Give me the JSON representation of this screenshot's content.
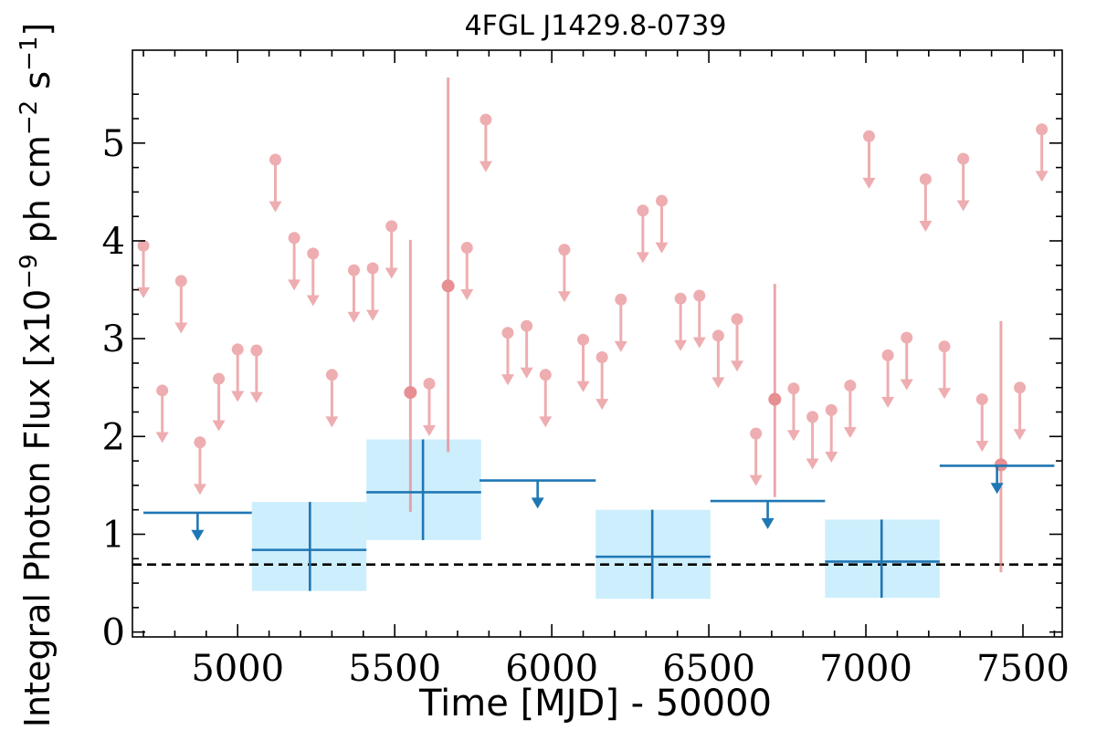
{
  "chart_data": {
    "type": "scatter",
    "title": "4FGL J1429.8-0739",
    "xlabel": "Time [MJD] - 50000",
    "ylabel_parts": [
      "Integral Photon Flux [x10",
      "−9",
      " ph cm",
      "−2",
      " s",
      "−1",
      "]"
    ],
    "xlim": [
      4665,
      7625
    ],
    "ylim": [
      -0.05,
      5.95
    ],
    "xticks": [
      5000,
      5500,
      6000,
      6500,
      7000,
      7500
    ],
    "yticks": [
      0,
      1,
      2,
      3,
      4,
      5
    ],
    "grid": false,
    "colors": {
      "fine": "#e88b8f",
      "coarse": "#1f77b4",
      "band": "#cdeefc",
      "ref_line": "#000000"
    },
    "reference_line": {
      "y": 0.69,
      "style": "dashed"
    },
    "series": [
      {
        "binning": "fine",
        "upper_limits": [
          {
            "x": 4700,
            "y": 3.95
          },
          {
            "x": 4760,
            "y": 2.47
          },
          {
            "x": 4820,
            "y": 3.59
          },
          {
            "x": 4880,
            "y": 1.94
          },
          {
            "x": 4940,
            "y": 2.59
          },
          {
            "x": 5000,
            "y": 2.89
          },
          {
            "x": 5060,
            "y": 2.88
          },
          {
            "x": 5120,
            "y": 4.83
          },
          {
            "x": 5180,
            "y": 4.03
          },
          {
            "x": 5240,
            "y": 3.87
          },
          {
            "x": 5300,
            "y": 2.63
          },
          {
            "x": 5370,
            "y": 3.7
          },
          {
            "x": 5430,
            "y": 3.72
          },
          {
            "x": 5490,
            "y": 4.15
          },
          {
            "x": 5610,
            "y": 2.54
          },
          {
            "x": 5730,
            "y": 3.93
          },
          {
            "x": 5790,
            "y": 5.24
          },
          {
            "x": 5860,
            "y": 3.06
          },
          {
            "x": 5920,
            "y": 3.13
          },
          {
            "x": 5980,
            "y": 2.63
          },
          {
            "x": 6040,
            "y": 3.91
          },
          {
            "x": 6100,
            "y": 2.99
          },
          {
            "x": 6160,
            "y": 2.81
          },
          {
            "x": 6220,
            "y": 3.4
          },
          {
            "x": 6290,
            "y": 4.31
          },
          {
            "x": 6350,
            "y": 4.41
          },
          {
            "x": 6410,
            "y": 3.41
          },
          {
            "x": 6470,
            "y": 3.44
          },
          {
            "x": 6530,
            "y": 3.03
          },
          {
            "x": 6590,
            "y": 3.2
          },
          {
            "x": 6650,
            "y": 2.03
          },
          {
            "x": 6770,
            "y": 2.49
          },
          {
            "x": 6830,
            "y": 2.2
          },
          {
            "x": 6890,
            "y": 2.27
          },
          {
            "x": 6950,
            "y": 2.52
          },
          {
            "x": 7010,
            "y": 5.07
          },
          {
            "x": 7070,
            "y": 2.83
          },
          {
            "x": 7130,
            "y": 3.01
          },
          {
            "x": 7190,
            "y": 4.63
          },
          {
            "x": 7250,
            "y": 2.92
          },
          {
            "x": 7310,
            "y": 4.84
          },
          {
            "x": 7370,
            "y": 2.38
          },
          {
            "x": 7490,
            "y": 2.5
          },
          {
            "x": 7560,
            "y": 5.14
          }
        ],
        "detections": [
          {
            "x": 5550,
            "y": 2.45,
            "ylow": 1.23,
            "yhigh": 4.01
          },
          {
            "x": 5670,
            "y": 3.54,
            "ylow": 1.84,
            "yhigh": 5.67
          },
          {
            "x": 6710,
            "y": 2.38,
            "ylow": 1.38,
            "yhigh": 3.56
          },
          {
            "x": 7430,
            "y": 1.71,
            "ylow": 0.61,
            "yhigh": 3.18
          }
        ]
      },
      {
        "binning": "coarse",
        "upper_limits": [
          {
            "x0": 4700,
            "x1": 5045,
            "y": 1.22
          },
          {
            "x0": 5770,
            "x1": 6140,
            "y": 1.55
          },
          {
            "x0": 6505,
            "x1": 6870,
            "y": 1.34
          },
          {
            "x0": 7235,
            "x1": 7600,
            "y": 1.7
          }
        ],
        "detections": [
          {
            "x0": 5045,
            "x1": 5410,
            "x": 5230,
            "y": 0.84,
            "ylow": 0.42,
            "yhigh": 1.33
          },
          {
            "x0": 5410,
            "x1": 5775,
            "x": 5590,
            "y": 1.43,
            "ylow": 0.94,
            "yhigh": 1.97
          },
          {
            "x0": 6140,
            "x1": 6505,
            "x": 6320,
            "y": 0.77,
            "ylow": 0.34,
            "yhigh": 1.25
          },
          {
            "x0": 6870,
            "x1": 7235,
            "x": 7050,
            "y": 0.72,
            "ylow": 0.35,
            "yhigh": 1.15
          }
        ]
      }
    ]
  }
}
